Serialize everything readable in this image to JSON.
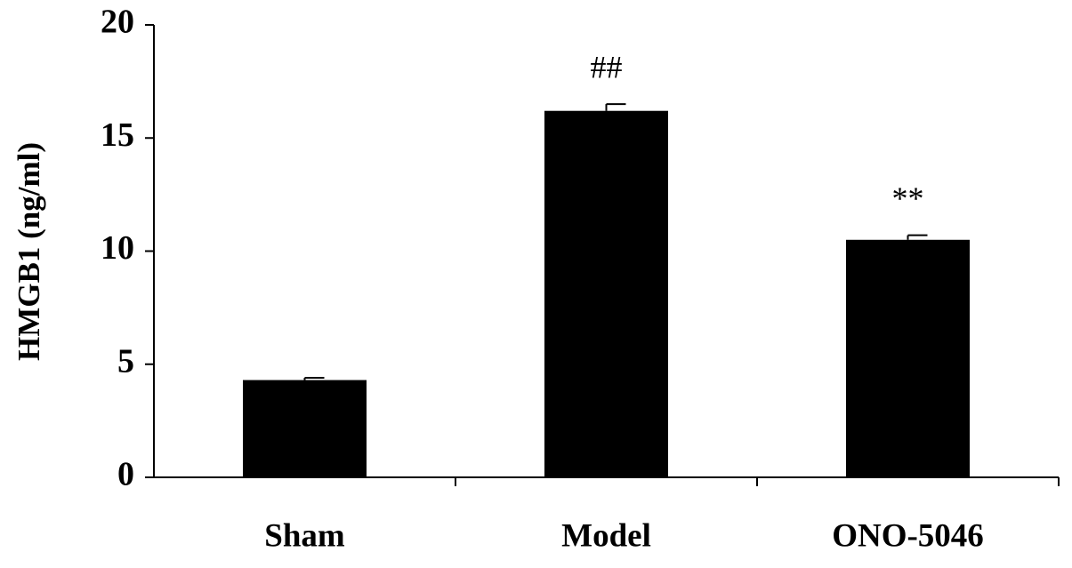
{
  "chart_data": {
    "type": "bar",
    "y_label": "HMGB1 (ng/ml)",
    "categories": [
      "Sham",
      "Model",
      "ONO-5046"
    ],
    "values": [
      4.3,
      16.2,
      10.5
    ],
    "errors": [
      0.1,
      0.3,
      0.2
    ],
    "annotations": [
      null,
      "##",
      "**"
    ],
    "color": "#000000",
    "ylim": [
      0,
      20
    ],
    "yticks": [
      0,
      5,
      10,
      15,
      20
    ],
    "grid": false
  }
}
